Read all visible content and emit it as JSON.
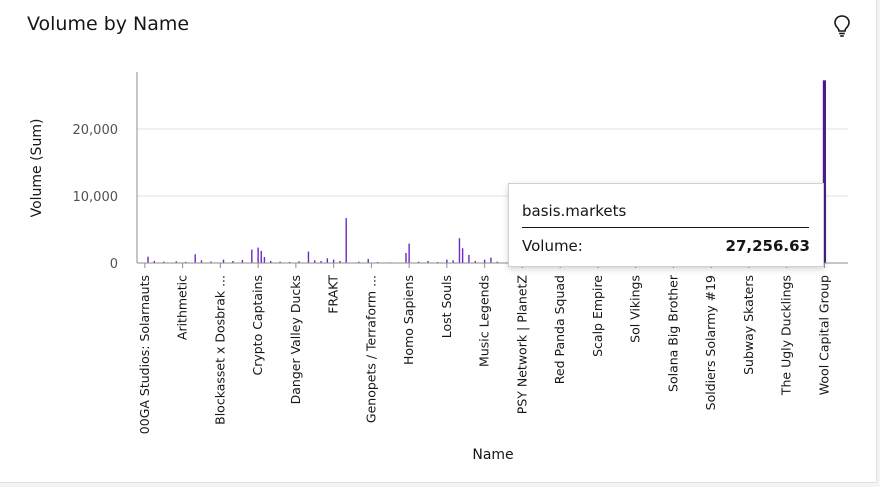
{
  "card": {
    "title": "Volume by Name",
    "lightbulb_icon": "lightbulb-icon"
  },
  "chart_data": {
    "type": "bar",
    "xlabel": "Name",
    "ylabel": "Volume (Sum)",
    "ylim": [
      0,
      28500
    ],
    "yticks": [
      0,
      10000,
      20000
    ],
    "ytick_labels": [
      "0",
      "10,000",
      "20,000"
    ],
    "grid": true,
    "bar_color": "#6929c4",
    "highlight_color": "#491d8b",
    "tick_categories": [
      "00GA Studios: Solarnauts",
      "Arithmetic",
      "Blockasset x Dosbrak ...",
      "Crypto Captains",
      "Danger Valley Ducks",
      "FRAKT",
      "Genopets / Terraform ...",
      "Homo Sapiens",
      "Lost Souls",
      "Music Legends",
      "PSY Network | PlanetZ",
      "Red Panda Squad",
      "Scalp Empire",
      "Sol Vikings",
      "Solana Big Brother",
      "Soldiers Solarmy #19",
      "Subway Skaters",
      "The Ugly Ducklings",
      "Wool Capital Group"
    ],
    "tick_positions": [
      2,
      14,
      26,
      38,
      50,
      62,
      74,
      86,
      98,
      110,
      122,
      134,
      146,
      158,
      170,
      182,
      194,
      206,
      218
    ],
    "num_categories": 226,
    "bars": [
      {
        "index": 3,
        "value": 950
      },
      {
        "index": 5,
        "value": 300
      },
      {
        "index": 8,
        "value": 200
      },
      {
        "index": 12,
        "value": 250
      },
      {
        "index": 15,
        "value": 180
      },
      {
        "index": 18,
        "value": 1300
      },
      {
        "index": 20,
        "value": 400
      },
      {
        "index": 23,
        "value": 220
      },
      {
        "index": 27,
        "value": 500
      },
      {
        "index": 30,
        "value": 300
      },
      {
        "index": 33,
        "value": 450
      },
      {
        "index": 36,
        "value": 2000
      },
      {
        "index": 38,
        "value": 2300
      },
      {
        "index": 39,
        "value": 1800
      },
      {
        "index": 40,
        "value": 900
      },
      {
        "index": 42,
        "value": 300
      },
      {
        "index": 45,
        "value": 200
      },
      {
        "index": 48,
        "value": 150
      },
      {
        "index": 51,
        "value": 250
      },
      {
        "index": 54,
        "value": 1700
      },
      {
        "index": 56,
        "value": 400
      },
      {
        "index": 58,
        "value": 300
      },
      {
        "index": 60,
        "value": 700
      },
      {
        "index": 62,
        "value": 500
      },
      {
        "index": 64,
        "value": 300
      },
      {
        "index": 66,
        "value": 6700
      },
      {
        "index": 70,
        "value": 200
      },
      {
        "index": 73,
        "value": 600
      },
      {
        "index": 76,
        "value": 150
      },
      {
        "index": 80,
        "value": 100
      },
      {
        "index": 85,
        "value": 1500
      },
      {
        "index": 86,
        "value": 2900
      },
      {
        "index": 89,
        "value": 200
      },
      {
        "index": 92,
        "value": 300
      },
      {
        "index": 95,
        "value": 150
      },
      {
        "index": 98,
        "value": 500
      },
      {
        "index": 100,
        "value": 400
      },
      {
        "index": 102,
        "value": 3700
      },
      {
        "index": 103,
        "value": 2200
      },
      {
        "index": 105,
        "value": 1200
      },
      {
        "index": 107,
        "value": 300
      },
      {
        "index": 110,
        "value": 500
      },
      {
        "index": 112,
        "value": 800
      },
      {
        "index": 114,
        "value": 200
      },
      {
        "index": 120,
        "value": 150
      },
      {
        "index": 218,
        "value": 27256.63,
        "highlight": true
      }
    ]
  },
  "tooltip": {
    "name": "basis.markets",
    "label": "Volume:",
    "value": "27,256.63"
  }
}
